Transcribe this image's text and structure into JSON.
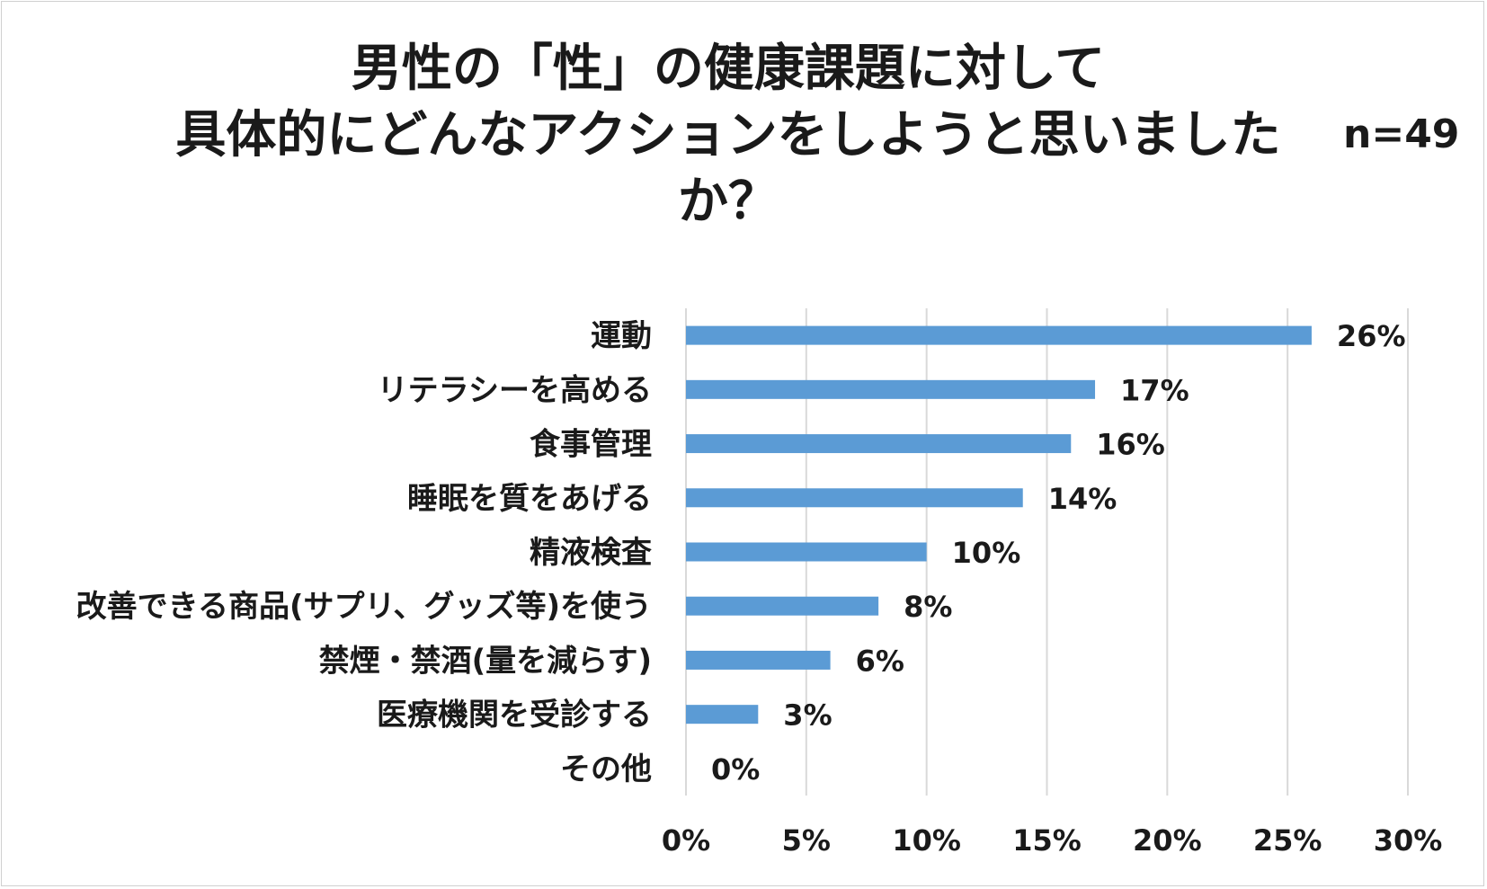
{
  "chart_data": {
    "type": "bar",
    "orientation": "horizontal",
    "title_lines": [
      "男性の「性」の健康課題に対して",
      "具体的にどんなアクションをしようと思いました",
      "か？"
    ],
    "sample_size": "n=49",
    "categories": [
      "運動",
      "リテラシーを高める",
      "食事管理",
      "睡眠を質をあげる",
      "精液検査",
      "改善できる商品(サプリ、グッズ等)を使う",
      "禁煙・禁酒(量を減らす)",
      "医療機関を受診する",
      "その他"
    ],
    "values": [
      26,
      17,
      16,
      14,
      10,
      8,
      6,
      3,
      0
    ],
    "value_labels": [
      "26%",
      "17%",
      "16%",
      "14%",
      "10%",
      "8%",
      "6%",
      "3%",
      "0%"
    ],
    "xlim": [
      0,
      30
    ],
    "x_ticks": [
      0,
      5,
      10,
      15,
      20,
      25,
      30
    ],
    "x_tick_labels": [
      "0%",
      "5%",
      "10%",
      "15%",
      "20%",
      "25%",
      "30%"
    ],
    "grid": true,
    "bar_color": "#5b9bd5",
    "grid_color": "#d9d9d9"
  }
}
